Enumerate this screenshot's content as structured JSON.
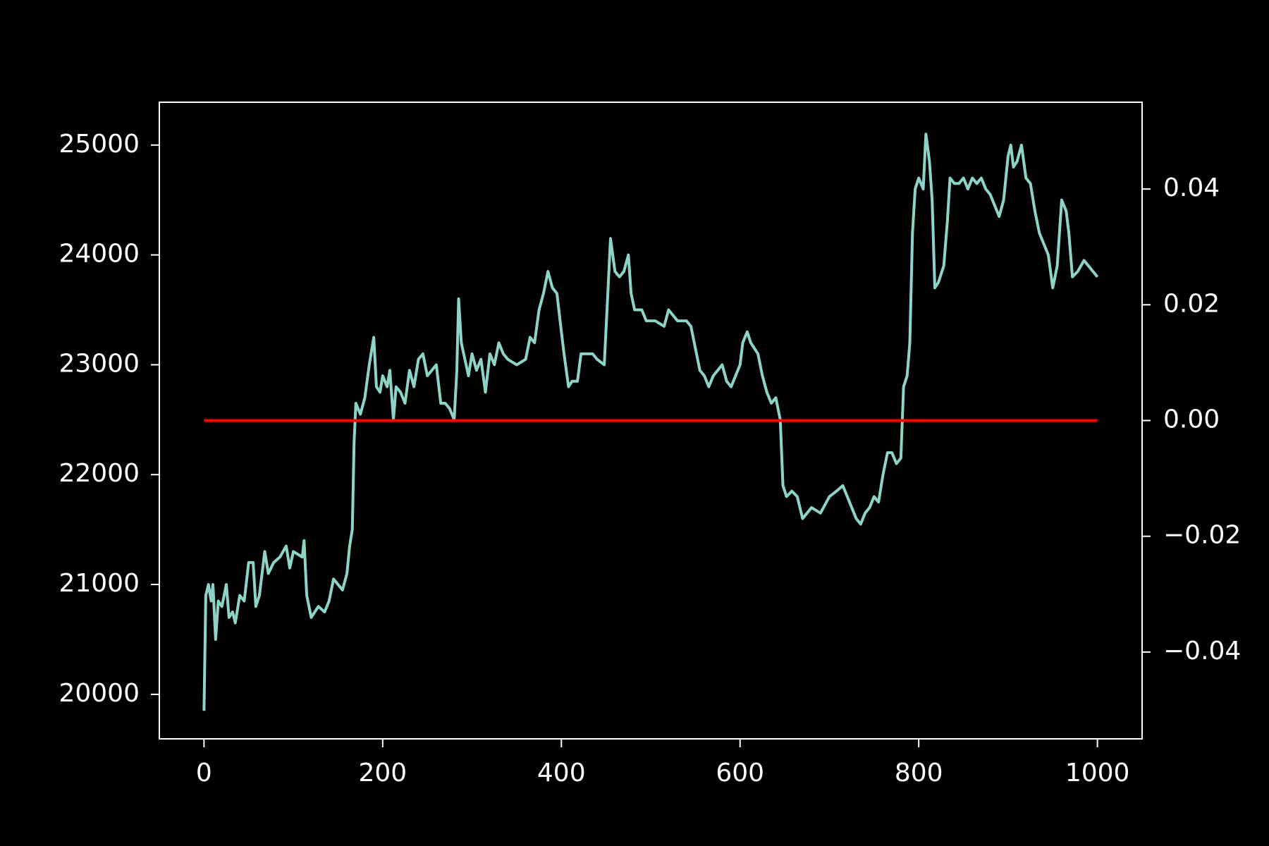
{
  "chart_data": {
    "type": "line",
    "xlim": [
      -50,
      1050
    ],
    "ylim": [
      19595,
      25390
    ],
    "y2lim": [
      -0.055,
      0.055
    ],
    "xticks": [
      0,
      200,
      400,
      600,
      800,
      1000
    ],
    "yticks": [
      20000,
      21000,
      22000,
      23000,
      24000,
      25000
    ],
    "y2ticks": [
      {
        "value": -0.04,
        "label": "−0.04"
      },
      {
        "value": -0.02,
        "label": "−0.02"
      },
      {
        "value": 0.0,
        "label": "0.00"
      },
      0.02,
      0.04
    ],
    "series": [
      {
        "color": "#8dd3c7",
        "x": [
          0,
          2,
          5,
          8,
          10,
          13,
          16,
          20,
          25,
          28,
          32,
          35,
          40,
          45,
          50,
          55,
          58,
          62,
          68,
          72,
          78,
          85,
          92,
          96,
          100,
          110,
          112,
          115,
          120,
          128,
          135,
          140,
          145,
          150,
          155,
          160,
          163,
          166,
          168,
          170,
          175,
          180,
          185,
          188,
          190,
          193,
          197,
          200,
          205,
          208,
          212,
          215,
          220,
          225,
          230,
          235,
          240,
          245,
          250,
          255,
          260,
          265,
          270,
          275,
          280,
          283,
          285,
          288,
          292,
          296,
          300,
          305,
          310,
          315,
          320,
          325,
          330,
          335,
          340,
          350,
          360,
          365,
          370,
          375,
          380,
          385,
          390,
          395,
          400,
          403,
          408,
          412,
          418,
          422,
          428,
          435,
          440,
          448,
          452,
          455,
          460,
          465,
          470,
          475,
          478,
          482,
          490,
          495,
          505,
          515,
          520,
          530,
          540,
          545,
          550,
          555,
          560,
          565,
          570,
          575,
          580,
          585,
          590,
          595,
          600,
          603,
          608,
          612,
          620,
          625,
          630,
          635,
          640,
          645,
          648,
          652,
          658,
          664,
          670,
          675,
          680,
          690,
          700,
          708,
          715,
          720,
          725,
          730,
          735,
          740,
          745,
          750,
          755,
          760,
          765,
          770,
          775,
          780,
          783,
          787,
          790,
          793,
          796,
          800,
          805,
          808,
          812,
          815,
          818,
          822,
          828,
          832,
          835,
          840,
          845,
          850,
          855,
          860,
          865,
          870,
          875,
          880,
          885,
          890,
          895,
          900,
          903,
          906,
          910,
          915,
          920,
          925,
          930,
          935,
          940,
          945,
          950,
          955,
          960,
          965,
          968,
          972,
          978,
          985,
          990,
          995,
          1000
        ],
        "values": [
          19850,
          20900,
          21000,
          20850,
          21000,
          20500,
          20850,
          20800,
          21000,
          20700,
          20750,
          20650,
          20900,
          20850,
          21200,
          21200,
          20800,
          20900,
          21300,
          21100,
          21200,
          21250,
          21350,
          21150,
          21300,
          21250,
          21400,
          20900,
          20700,
          20800,
          20750,
          20850,
          21050,
          21000,
          20950,
          21100,
          21350,
          21500,
          22300,
          22650,
          22550,
          22700,
          23000,
          23150,
          23250,
          22800,
          22750,
          22900,
          22800,
          22950,
          22500,
          22800,
          22750,
          22650,
          22950,
          22800,
          23050,
          23100,
          22900,
          22950,
          23000,
          22650,
          22650,
          22600,
          22500,
          22950,
          23600,
          23200,
          23050,
          22900,
          23100,
          22950,
          23050,
          22750,
          23100,
          23000,
          23200,
          23100,
          23050,
          23000,
          23050,
          23250,
          23200,
          23500,
          23650,
          23850,
          23700,
          23650,
          23300,
          23100,
          22800,
          22850,
          22850,
          23100,
          23100,
          23100,
          23050,
          23000,
          23650,
          24150,
          23850,
          23800,
          23850,
          24000,
          23650,
          23500,
          23500,
          23400,
          23400,
          23350,
          23500,
          23400,
          23400,
          23350,
          23150,
          22950,
          22900,
          22800,
          22900,
          22950,
          23000,
          22850,
          22800,
          22900,
          23000,
          23200,
          23300,
          23200,
          23100,
          22900,
          22750,
          22650,
          22700,
          22500,
          21900,
          21800,
          21850,
          21800,
          21600,
          21650,
          21700,
          21650,
          21800,
          21850,
          21900,
          21800,
          21700,
          21600,
          21550,
          21650,
          21700,
          21800,
          21750,
          22000,
          22200,
          22200,
          22100,
          22150,
          22800,
          22900,
          23200,
          24200,
          24600,
          24700,
          24600,
          25100,
          24850,
          24500,
          23700,
          23750,
          23900,
          24300,
          24700,
          24650,
          24650,
          24700,
          24600,
          24700,
          24650,
          24700,
          24600,
          24550,
          24450,
          24350,
          24500,
          24900,
          25000,
          24800,
          24850,
          25000,
          24700,
          24650,
          24400,
          24200,
          24100,
          24000,
          23700,
          23900,
          24500,
          24400,
          24200,
          23800,
          23850,
          23950,
          23900,
          23850,
          23800
        ]
      },
      {
        "color": "#ff0000",
        "axis": "y2",
        "x": [
          0,
          1000
        ],
        "values": [
          0,
          0
        ]
      }
    ]
  }
}
